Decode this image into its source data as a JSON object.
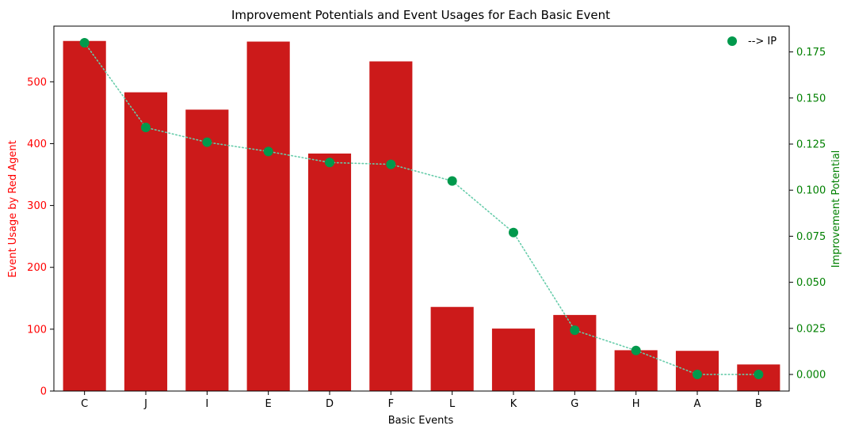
{
  "chart_data": {
    "type": "bar+line",
    "title": "Improvement Potentials and Event Usages for Each Basic Event",
    "xlabel": "Basic Events",
    "categories": [
      "C",
      "J",
      "I",
      "E",
      "D",
      "F",
      "L",
      "K",
      "G",
      "H",
      "A",
      "B"
    ],
    "left_axis": {
      "label": "Event Usage by Red Agent",
      "color": "#ff0000",
      "ylim": [
        0,
        590
      ],
      "ticks": [
        0,
        100,
        200,
        300,
        400,
        500
      ],
      "tick_labels": [
        "0",
        "100",
        "200",
        "300",
        "400",
        "500"
      ]
    },
    "right_axis": {
      "label": "Improvement Potential",
      "color": "#008000",
      "ylim": [
        -0.009,
        0.189
      ],
      "ticks": [
        0.0,
        0.025,
        0.05,
        0.075,
        0.1,
        0.125,
        0.15,
        0.175
      ],
      "tick_labels": [
        "0.000",
        "0.025",
        "0.050",
        "0.075",
        "0.100",
        "0.125",
        "0.150",
        "0.175"
      ]
    },
    "bars": {
      "color": "#cc1a1a",
      "values": [
        566,
        483,
        455,
        565,
        384,
        533,
        136,
        101,
        123,
        66,
        65,
        43
      ]
    },
    "line": {
      "name": "--> IP",
      "marker_color": "#00994c",
      "line_color": "#66ccaa",
      "style": "dotted",
      "values": [
        0.18,
        0.134,
        0.126,
        0.121,
        0.115,
        0.114,
        0.105,
        0.077,
        0.024,
        0.013,
        0.0,
        0.0
      ]
    },
    "legend": {
      "position": "top-right",
      "entries": [
        "--> IP"
      ]
    },
    "grid": false
  }
}
